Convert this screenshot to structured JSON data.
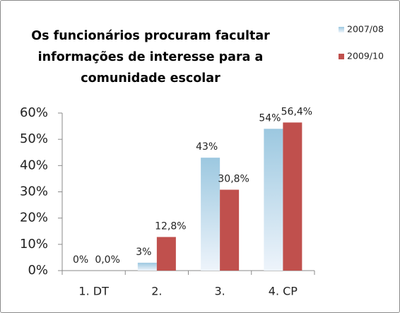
{
  "chart_data": {
    "type": "bar",
    "title": "Os funcionários procuram facultar informações de interesse para a comunidade escolar",
    "categories": [
      "1. DT",
      "2.",
      "3.",
      "4. CP"
    ],
    "series": [
      {
        "name": "2007/08",
        "color": "#9cc8e0",
        "values": [
          0,
          3,
          43,
          54
        ],
        "value_labels": [
          "0%",
          "3%",
          "43%",
          "54%"
        ]
      },
      {
        "name": "2009/10",
        "color": "#c0504d",
        "values": [
          0.0,
          12.8,
          30.8,
          56.4
        ],
        "value_labels": [
          "0,0%",
          "12,8%",
          "30,8%",
          "56,4%"
        ]
      }
    ],
    "ylim": [
      0,
      60
    ],
    "yticks": [
      {
        "value": 0,
        "label": "0%"
      },
      {
        "value": 10,
        "label": "10%"
      },
      {
        "value": 20,
        "label": "20%"
      },
      {
        "value": 30,
        "label": "30%"
      },
      {
        "value": 40,
        "label": "40%"
      },
      {
        "value": 50,
        "label": "50%"
      },
      {
        "value": 60,
        "label": "60%"
      }
    ],
    "grid": false,
    "legend": "right"
  }
}
